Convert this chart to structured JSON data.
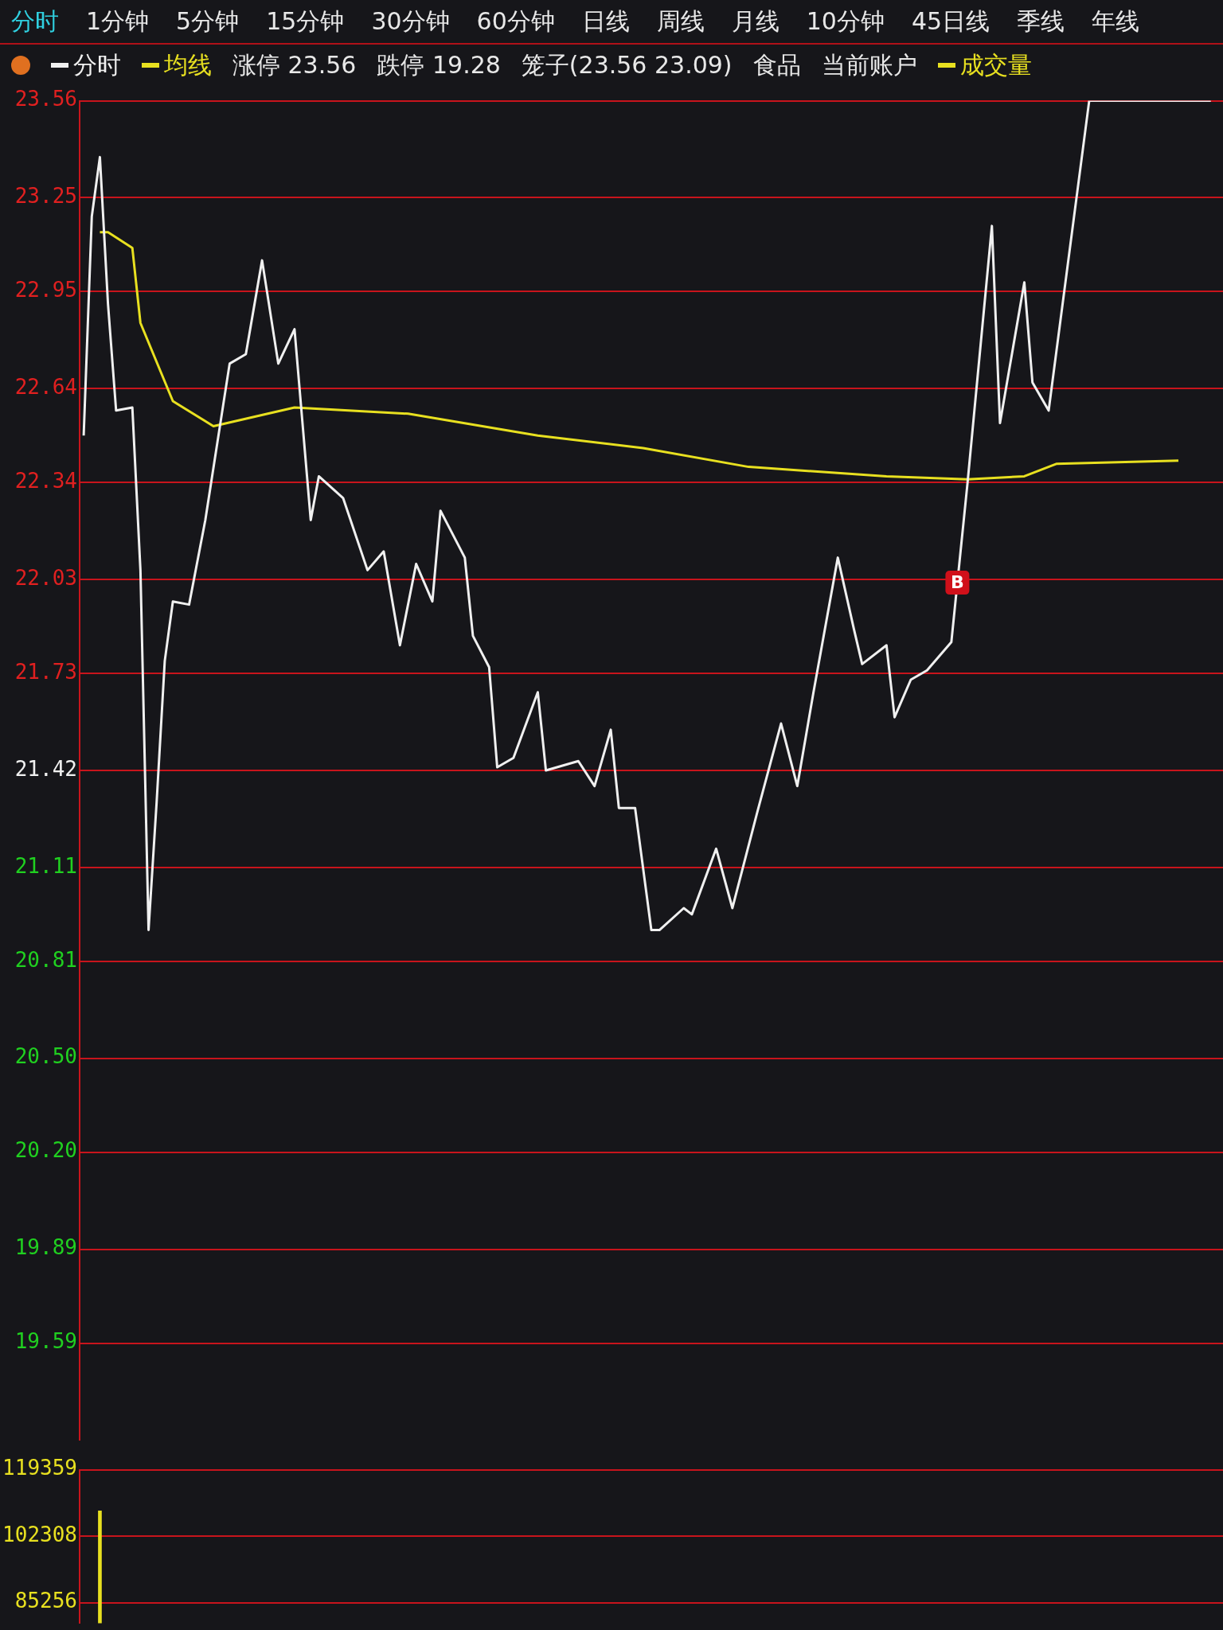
{
  "chart_data": [
    {
      "type": "other",
      "annotations": [
        "分时",
        "1分钟",
        "5分钟",
        "15分钟",
        "30分钟",
        "60分钟",
        "日线",
        "周线",
        "月线",
        "10分钟",
        "45日线",
        "季线",
        "年线"
      ]
    },
    {
      "type": "line",
      "legend": "top left",
      "grid": "y",
      "marker": "none",
      "line_style": "solid",
      "tick_labels": "y",
      "categories": [
        null,
        null,
        null,
        null,
        null,
        null,
        null,
        null,
        null,
        null,
        null,
        null,
        null,
        null,
        null,
        null,
        null,
        null,
        null,
        null,
        null,
        null,
        null,
        null,
        null,
        null,
        null,
        null,
        null,
        null,
        null,
        null,
        null,
        null,
        null,
        null,
        null,
        null,
        null,
        null,
        null,
        null,
        null,
        null,
        null,
        null,
        null,
        null,
        null,
        null,
        null,
        null,
        null,
        null,
        null,
        null,
        null,
        null,
        null,
        null,
        null,
        null,
        null,
        null,
        null,
        null,
        null,
        null,
        null,
        null,
        null,
        null,
        null,
        null,
        null,
        null,
        null,
        null,
        null,
        null,
        null,
        null,
        null,
        null,
        null,
        null,
        null,
        null,
        null,
        null,
        null,
        null,
        null,
        null,
        null,
        null,
        null,
        null,
        null,
        null,
        null,
        null,
        null,
        null,
        null,
        null,
        null,
        null,
        null,
        null,
        null,
        null,
        null,
        null,
        null,
        null,
        null,
        null,
        null,
        null,
        null,
        null,
        null,
        null,
        null,
        null,
        null,
        null,
        null,
        null,
        null,
        null,
        null,
        null,
        null,
        null,
        null,
        null,
        null,
        null,
        null
      ],
      "ylim": [
        19.28,
        23.56
      ],
      "yticks": [
        23.56,
        23.25,
        22.95,
        22.64,
        22.34,
        22.03,
        21.73,
        21.42,
        21.11,
        20.81,
        {
          "value": 20.5,
          "label": "20.50"
        },
        {
          "value": 20.2,
          "label": "20.20"
        },
        19.89,
        19.59
      ],
      "annotations": [
        "涨停 23.56",
        "跌停 19.28",
        "笼子(23.56 23.09)",
        "食品",
        "当前账户",
        {
          "text": "B",
          "y": 22.02
        }
      ],
      "series": [
        {
          "name": "分时",
          "color": "#f0f0f0",
          "values": [
            22.49,
            23.19,
            23.38,
            22.91,
            22.57,
            null,
            22.58,
            22.06,
            20.91,
            21.32,
            21.77,
            21.96,
            null,
            21.95,
            null,
            22.22,
            null,
            null,
            22.72,
            null,
            22.75,
            null,
            23.05,
            null,
            22.72,
            null,
            22.83,
            null,
            22.22,
            22.36,
            null,
            null,
            22.29,
            null,
            null,
            22.06,
            null,
            22.12,
            null,
            21.82,
            null,
            22.08,
            null,
            21.96,
            22.25,
            null,
            null,
            22.1,
            21.85,
            null,
            21.75,
            21.43,
            null,
            21.46,
            null,
            null,
            21.67,
            21.42,
            null,
            null,
            null,
            21.45,
            null,
            21.37,
            null,
            21.55,
            21.3,
            null,
            21.3,
            null,
            20.91,
            20.91,
            null,
            null,
            20.98,
            20.96,
            null,
            null,
            21.17,
            null,
            20.98,
            null,
            null,
            21.28,
            null,
            null,
            21.57,
            null,
            21.37,
            null,
            21.67,
            null,
            null,
            22.1,
            null,
            21.87,
            21.76,
            null,
            null,
            21.82,
            21.59,
            null,
            21.71,
            null,
            21.74,
            null,
            null,
            21.83,
            null,
            22.34,
            null,
            null,
            23.16,
            22.53,
            null,
            null,
            22.98,
            22.66,
            null,
            22.57,
            null,
            null,
            null,
            null,
            23.56,
            null,
            null,
            null,
            null,
            null,
            null,
            null,
            null,
            null,
            null,
            null,
            null,
            null,
            null,
            23.56,
            null
          ]
        },
        {
          "name": "均线",
          "color": "#e8e020",
          "values": [
            null,
            null,
            23.14,
            23.14,
            null,
            null,
            23.09,
            22.85,
            null,
            null,
            null,
            22.6,
            null,
            null,
            null,
            null,
            22.52,
            null,
            null,
            null,
            null,
            null,
            null,
            null,
            null,
            null,
            22.58,
            null,
            null,
            null,
            null,
            null,
            null,
            null,
            null,
            null,
            null,
            null,
            null,
            null,
            22.56,
            null,
            null,
            null,
            null,
            null,
            null,
            null,
            null,
            null,
            null,
            null,
            null,
            null,
            null,
            null,
            22.49,
            null,
            null,
            null,
            null,
            null,
            null,
            null,
            null,
            null,
            null,
            null,
            null,
            22.45,
            null,
            null,
            null,
            null,
            null,
            null,
            null,
            null,
            null,
            null,
            null,
            null,
            22.39,
            null,
            null,
            null,
            null,
            null,
            null,
            null,
            null,
            null,
            null,
            null,
            null,
            null,
            null,
            null,
            null,
            22.36,
            null,
            null,
            null,
            null,
            null,
            null,
            null,
            null,
            null,
            22.35,
            null,
            null,
            null,
            null,
            null,
            null,
            22.36,
            null,
            null,
            null,
            22.4,
            null,
            null,
            null,
            null,
            null,
            null,
            null,
            null,
            null,
            null,
            null,
            null,
            null,
            null,
            22.41,
            null,
            null,
            null,
            null,
            null
          ]
        }
      ]
    },
    {
      "type": "bar",
      "legend": "top right",
      "grid": "y",
      "tick_labels": "y",
      "categories": [
        null,
        null,
        null,
        null,
        null,
        null,
        null,
        null,
        null,
        null,
        null,
        null,
        null,
        null,
        null,
        null,
        null,
        null,
        null,
        null,
        null,
        null,
        null,
        null,
        null,
        null,
        null,
        null,
        null,
        null,
        null,
        null,
        null,
        null,
        null,
        null,
        null,
        null,
        null,
        null,
        null,
        null,
        null,
        null,
        null,
        null,
        null,
        null,
        null,
        null,
        null,
        null,
        null,
        null,
        null,
        null,
        null,
        null,
        null,
        null,
        null,
        null,
        null,
        null,
        null,
        null,
        null,
        null,
        null,
        null,
        null,
        null,
        null,
        null,
        null,
        null,
        null,
        null,
        null,
        null,
        null,
        null,
        null,
        null,
        null,
        null,
        null,
        null,
        null,
        null,
        null,
        null,
        null,
        null,
        null,
        null,
        null,
        null,
        null,
        null,
        null,
        null,
        null,
        null,
        null,
        null,
        null,
        null,
        null,
        null,
        null,
        null,
        null,
        null,
        null,
        null,
        null,
        null,
        null,
        null,
        null,
        null,
        null,
        null,
        null,
        null,
        null,
        null,
        null,
        null,
        null,
        null,
        null,
        null,
        null,
        null,
        null,
        null,
        null,
        null,
        null
      ],
      "ylim": [
        80000,
        119359
      ],
      "yticks": [
        119359,
        102308,
        85256
      ],
      "series": [
        {
          "name": "成交量",
          "color": "#e8e020",
          "values": [
            null,
            null,
            108800,
            null,
            null,
            null,
            null,
            null,
            null,
            null,
            null,
            null,
            null,
            null,
            null,
            null,
            null,
            null,
            null,
            null,
            null,
            null,
            null,
            null,
            null,
            null,
            null,
            null,
            null,
            null,
            null,
            null,
            null,
            null,
            null,
            null,
            null,
            null,
            null,
            null,
            null,
            null,
            null,
            null,
            null,
            null,
            null,
            null,
            null,
            null,
            null,
            null,
            null,
            null,
            null,
            null,
            null,
            null,
            null,
            null,
            null,
            null,
            null,
            null,
            null,
            null,
            null,
            null,
            null,
            null,
            null,
            null,
            null,
            null,
            null,
            null,
            null,
            null,
            null,
            null,
            null,
            null,
            null,
            null,
            null,
            null,
            null,
            null,
            null,
            null,
            null,
            null,
            null,
            null,
            null,
            null,
            null,
            null,
            null,
            null,
            null,
            null,
            null,
            null,
            null,
            null,
            null,
            null,
            null,
            null,
            null,
            null,
            null,
            null,
            null,
            null,
            null,
            null,
            null,
            null,
            null,
            null,
            null,
            null,
            null,
            null,
            null,
            null,
            null,
            null,
            null,
            null,
            null,
            null,
            null,
            null,
            null,
            null,
            null,
            null,
            null
          ]
        }
      ]
    }
  ]
}
